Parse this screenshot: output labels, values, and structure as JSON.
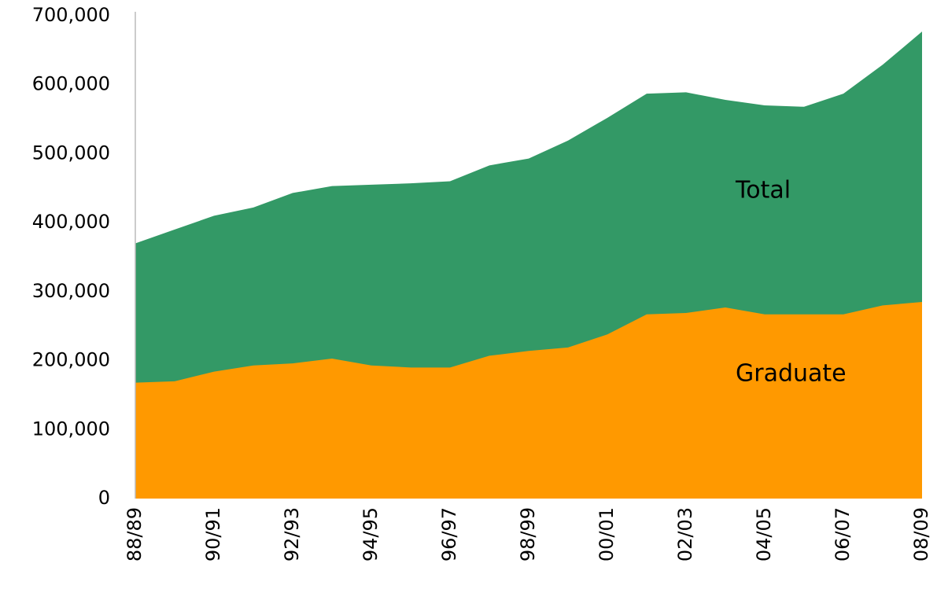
{
  "chart_data": {
    "type": "area",
    "categories": [
      "88/89",
      null,
      "90/91",
      null,
      "92/93",
      null,
      "94/95",
      null,
      "96/97",
      null,
      "98/99",
      null,
      "00/01",
      null,
      "02/03",
      null,
      "04/05",
      null,
      "06/07",
      null,
      "08/09"
    ],
    "series": [
      {
        "name": "Total",
        "color": "#339966",
        "values": [
          370000,
          390000,
          410000,
          422000,
          443000,
          453000,
          455000,
          457000,
          460000,
          483000,
          493000,
          519000,
          552000,
          587000,
          589000,
          578000,
          570000,
          568000,
          587000,
          629000,
          677000
        ]
      },
      {
        "name": "Graduate",
        "color": "#ff9900",
        "values": [
          168000,
          170000,
          184000,
          193000,
          196000,
          203000,
          193000,
          190000,
          190000,
          207000,
          214000,
          219000,
          238000,
          267000,
          269000,
          277000,
          267000,
          267000,
          267000,
          280000,
          285000
        ]
      }
    ],
    "annotations": [
      {
        "text": "Total"
      },
      {
        "text": "Graduate"
      }
    ],
    "ylim": [
      0,
      700000
    ],
    "yticks": [
      0,
      {
        "value": 100000,
        "label": "100,000"
      },
      {
        "value": 200000,
        "label": "200,000"
      },
      {
        "value": 300000,
        "label": "300,000"
      },
      {
        "value": 400000,
        "label": "400,000"
      },
      {
        "value": 500000,
        "label": "500,000"
      },
      {
        "value": 600000,
        "label": "600,000"
      },
      {
        "value": 700000,
        "label": "700,000"
      }
    ],
    "grid": false
  }
}
